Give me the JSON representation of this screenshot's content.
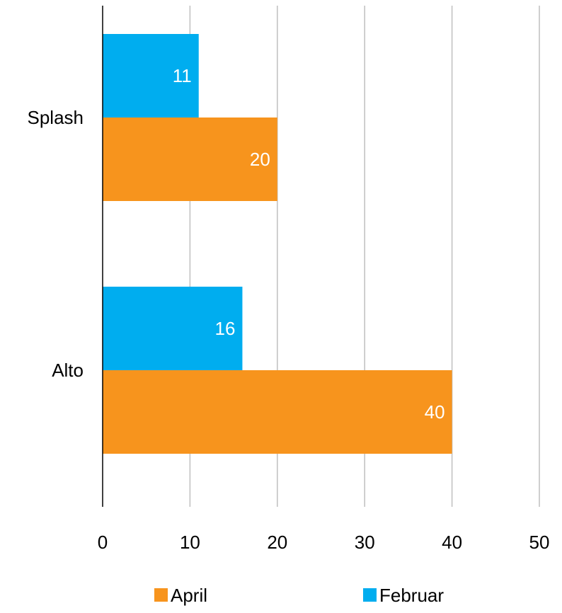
{
  "chart_data": {
    "type": "bar",
    "orientation": "horizontal",
    "categories": [
      "Splash",
      "Alto"
    ],
    "series": [
      {
        "name": "Februar",
        "values": [
          11,
          16
        ],
        "color": "#00ADEF"
      },
      {
        "name": "April",
        "values": [
          20,
          40
        ],
        "color": "#F7941D"
      }
    ],
    "xlim": [
      0,
      50
    ],
    "x_ticks": [
      0,
      10,
      20,
      30,
      40,
      50
    ],
    "grid": true,
    "gridline_color": "#BFBFBF",
    "axis_color": "#000000",
    "data_labels": true,
    "legend_order": [
      "April",
      "Februar"
    ],
    "legend_position": "bottom"
  }
}
